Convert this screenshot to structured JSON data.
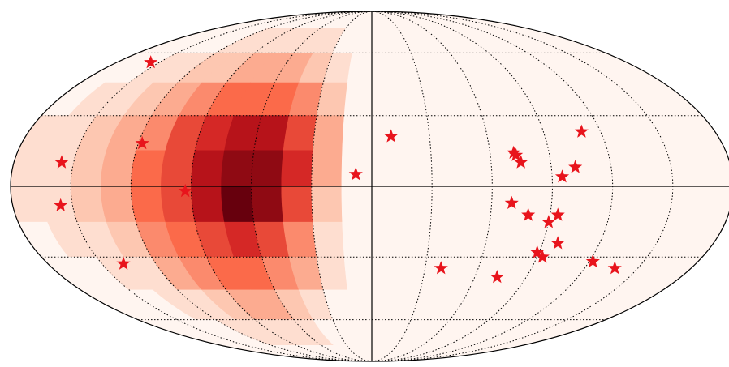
{
  "chart_data": {
    "type": "scatter",
    "projection": "mollweide",
    "xlim": [
      -180,
      180
    ],
    "ylim": [
      -90,
      90
    ],
    "xticks": [
      -150,
      -120,
      -90,
      -60,
      -30,
      0,
      30,
      60,
      90,
      120,
      150
    ],
    "yticks": [
      -60,
      -30,
      0,
      30,
      60
    ],
    "grid": true,
    "heatmap": {
      "colormap": [
        "#fff5f0",
        "#fcbba1",
        "#fb6a4a",
        "#cb181d",
        "#67000d"
      ],
      "zlim": [
        0,
        10
      ],
      "lon": [
        -172.5,
        -157.5,
        -142.5,
        -127.5,
        -112.5,
        -97.5,
        -82.5,
        -67.5,
        -52.5,
        -37.5,
        -22.5,
        -7.5
      ],
      "lat": [
        67.5,
        52.5,
        37.5,
        22.5,
        7.5,
        -7.5,
        -22.5,
        -37.5,
        -52.5,
        -67.5
      ],
      "z": [
        [
          0,
          0,
          0,
          0,
          1,
          1,
          1,
          1,
          1,
          1,
          0,
          0
        ],
        [
          0,
          0,
          1,
          1,
          2,
          2,
          3,
          3,
          3,
          2,
          1,
          0
        ],
        [
          0,
          1,
          1,
          2,
          3,
          4,
          5,
          5,
          5,
          4,
          2,
          0
        ],
        [
          1,
          1,
          2,
          3,
          4,
          6,
          7,
          8,
          8,
          6,
          3,
          0
        ],
        [
          1,
          1,
          2,
          3,
          5,
          6,
          8,
          9,
          9,
          7,
          3,
          0
        ],
        [
          1,
          1,
          2,
          3,
          5,
          6,
          8,
          10,
          9,
          6,
          2,
          0
        ],
        [
          0,
          1,
          1,
          2,
          4,
          5,
          6,
          7,
          6,
          4,
          1,
          0
        ],
        [
          0,
          0,
          1,
          1,
          3,
          4,
          5,
          5,
          4,
          3,
          1,
          0
        ],
        [
          0,
          0,
          0,
          1,
          1,
          2,
          3,
          3,
          2,
          1,
          0,
          0
        ],
        [
          0,
          0,
          0,
          0,
          1,
          1,
          1,
          1,
          1,
          0,
          0,
          0
        ]
      ]
    },
    "series": [
      {
        "color": "#e8141c",
        "x": [
          -156,
          -118,
          -156,
          -156,
          -93,
          -138,
          -8,
          10,
          110,
          72,
          73,
          75,
          102,
          95,
          70,
          79,
          94,
          90,
          98,
          89,
          93,
          122,
          137,
          39,
          73
        ],
        "values": [
          55,
          18,
          10,
          -8,
          -2,
          -33,
          5,
          21,
          23,
          14,
          13,
          10,
          8,
          4,
          -7,
          -12,
          -12,
          -15,
          -24,
          -28,
          -30,
          -32,
          -35,
          -35,
          -39
        ]
      }
    ]
  }
}
